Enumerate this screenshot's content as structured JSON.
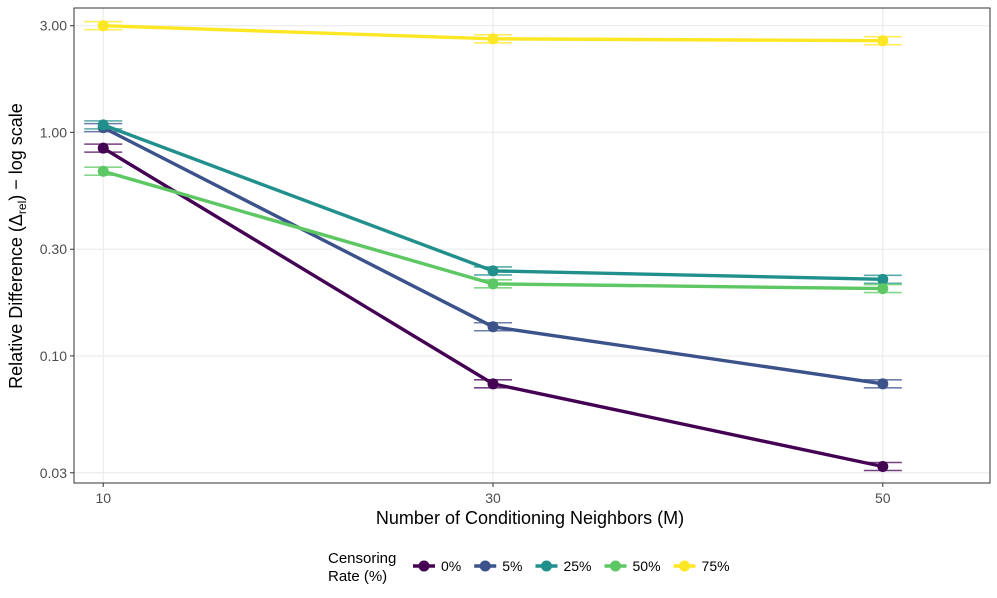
{
  "chart_data": {
    "type": "line",
    "xlabel": "Number of Conditioning Neighbors (M)",
    "ylabel_main": "Relative Difference (Δ",
    "ylabel_sub": "rel",
    "ylabel_tail": ") − log scale",
    "yscale": "log",
    "x": [
      10,
      30,
      50
    ],
    "xlim": [
      8.5,
      55.5
    ],
    "ylim": [
      0.027,
      3.6
    ],
    "x_ticks": [
      10,
      30,
      50
    ],
    "x_tick_labels": [
      "10",
      "30",
      "50"
    ],
    "y_ticks": [
      0.03,
      0.1,
      0.3,
      1,
      3
    ],
    "y_tick_labels": [
      "0.03",
      "0.10",
      "0.30",
      "1.00",
      "3.00"
    ],
    "grid": true,
    "legend_title_line1": "Censoring",
    "legend_title_line2": "Rate (%)",
    "legend_position": "bottom",
    "series": [
      {
        "name": "0%",
        "color": "#440154",
        "values": [
          0.85,
          0.075,
          0.032
        ]
      },
      {
        "name": "5%",
        "color": "#3b528b",
        "values": [
          1.05,
          0.135,
          0.075
        ]
      },
      {
        "name": "25%",
        "color": "#21908c",
        "values": [
          1.08,
          0.24,
          0.22
        ]
      },
      {
        "name": "50%",
        "color": "#5dc863",
        "values": [
          0.67,
          0.21,
          0.2
        ]
      },
      {
        "name": "75%",
        "color": "#fde725",
        "values": [
          3.0,
          2.62,
          2.57
        ]
      }
    ]
  }
}
